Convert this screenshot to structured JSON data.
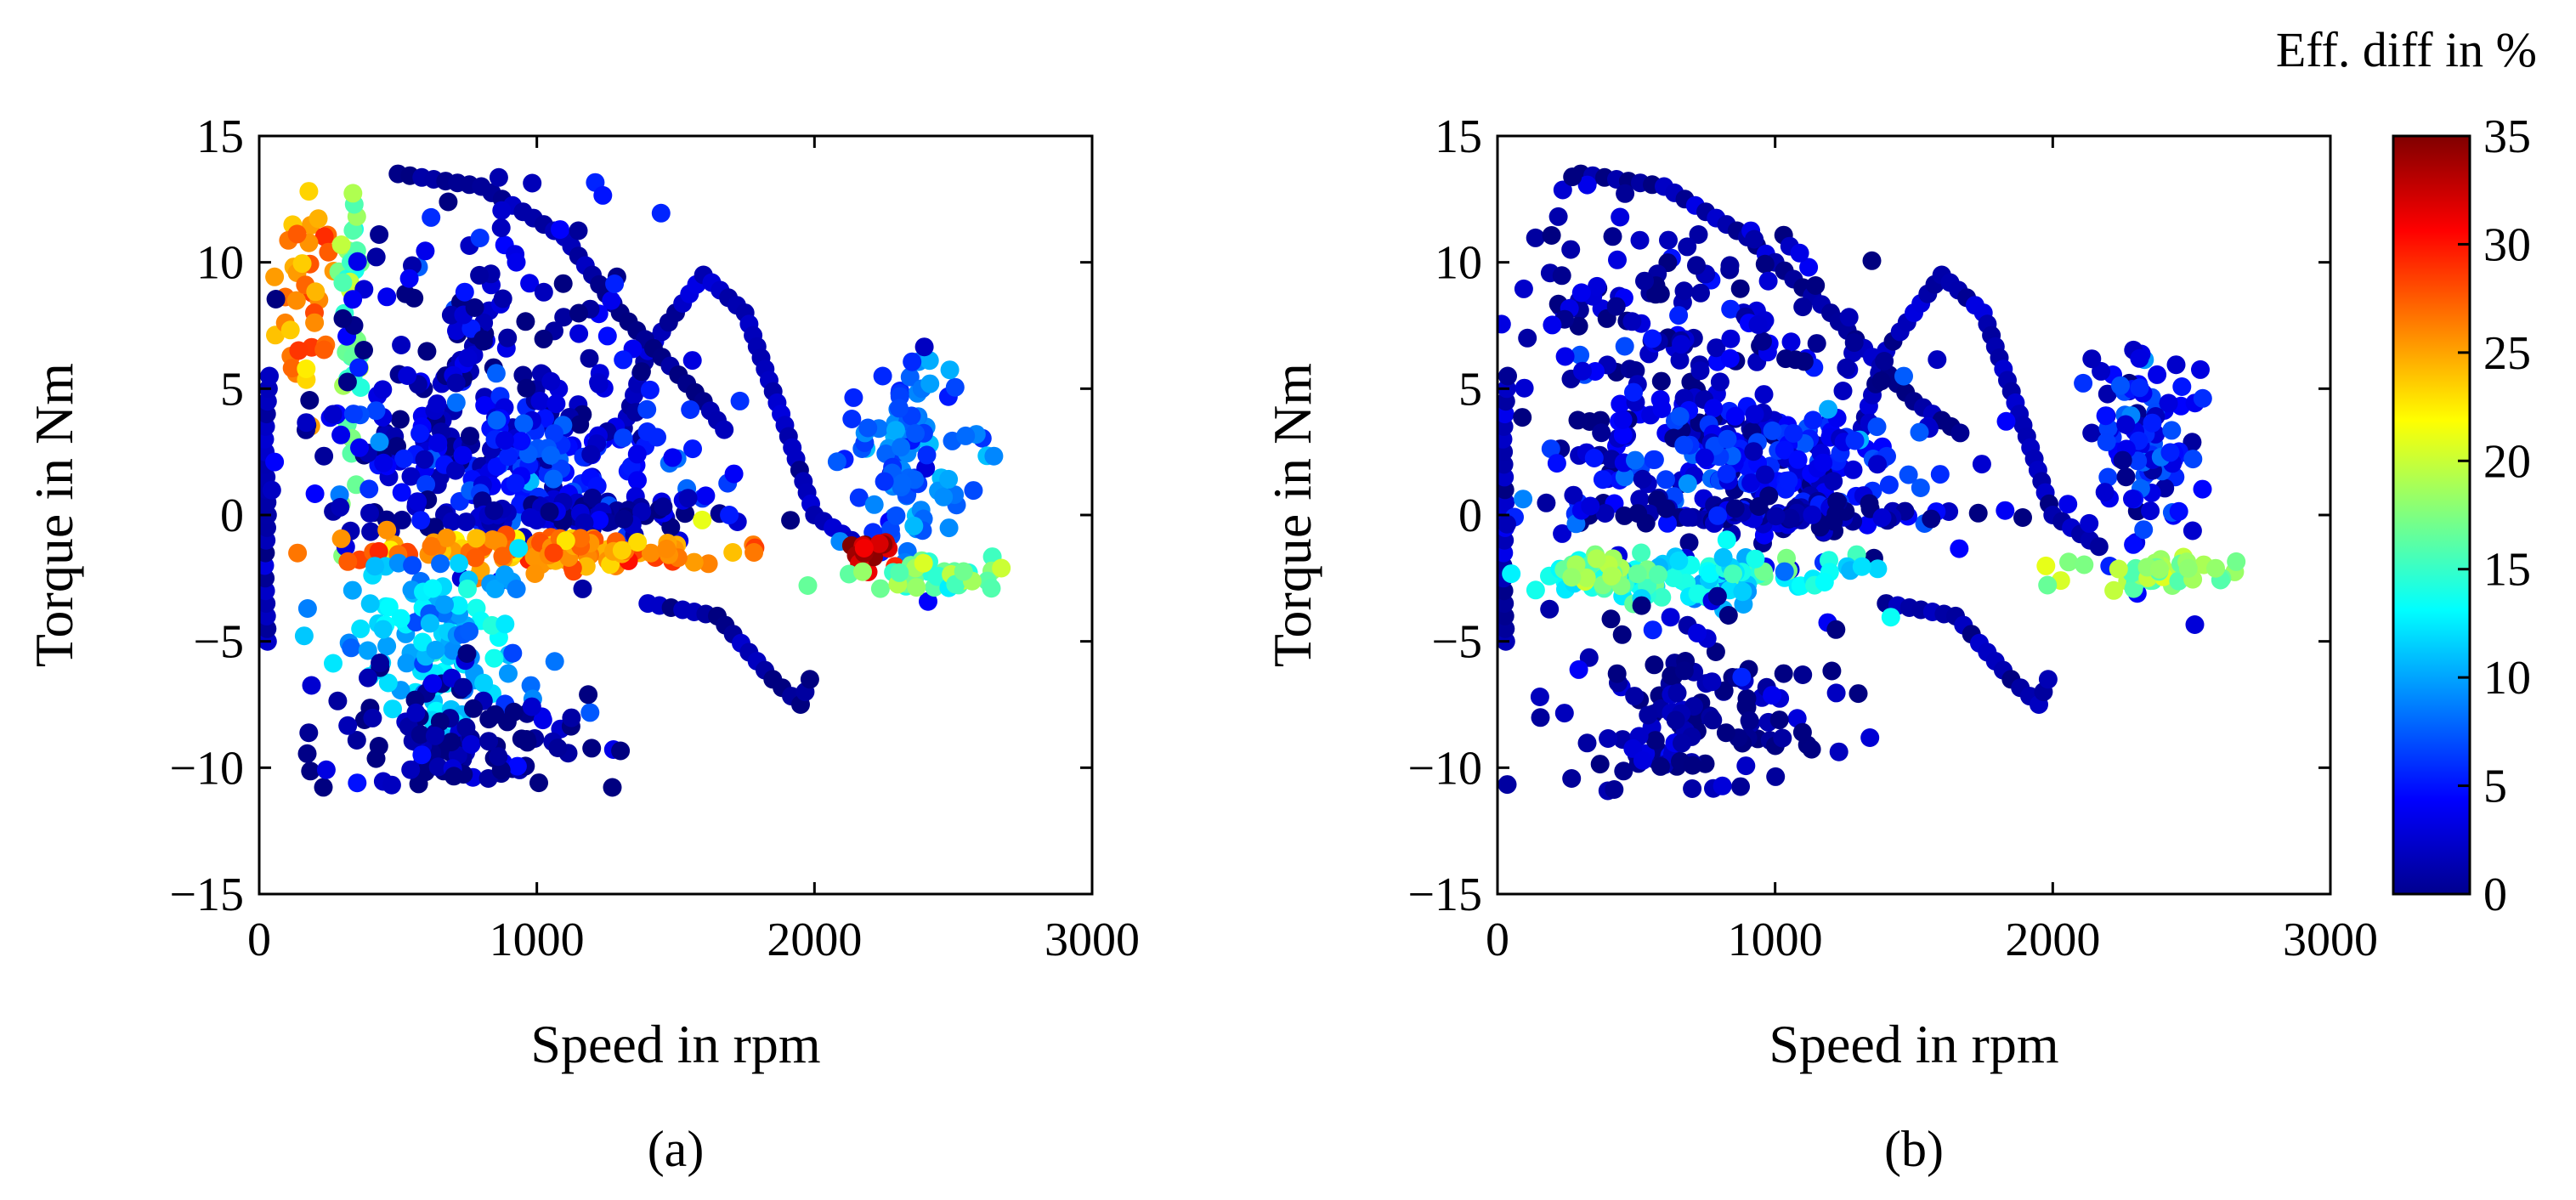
{
  "chart_data": [
    {
      "type": "scatter",
      "panel_label": "(a)",
      "xlabel": "Speed in rpm",
      "ylabel": "Torque in Nm",
      "xlim": [
        0,
        3000
      ],
      "ylim": [
        -15,
        15
      ],
      "xticks": [
        0,
        1000,
        2000,
        3000
      ],
      "yticks": [
        -15,
        -10,
        -5,
        0,
        5,
        10,
        15
      ],
      "xtick_labels": [
        "0",
        "1000",
        "2000",
        "3000"
      ],
      "ytick_labels": [
        "−15",
        "−10",
        "−5",
        "0",
        "5",
        "10",
        "15"
      ],
      "color_variable": "Eff. diff in %",
      "clusters": [
        {
          "label": "high-torque spin (orange)",
          "cx": 160,
          "cy": 9.0,
          "sx": 60,
          "sy": 3.0,
          "n": 40,
          "c": 26
        },
        {
          "label": "yellow vertical band",
          "cx": 330,
          "cy": 7.0,
          "sx": 25,
          "sy": 4.0,
          "n": 40,
          "c": 17
        },
        {
          "label": "main blue operating area",
          "cx": 800,
          "cy": 5.0,
          "sx": 300,
          "sy": 3.5,
          "n": 220,
          "c": 2
        },
        {
          "label": "blue mid band",
          "cx": 1000,
          "cy": 2.0,
          "sx": 350,
          "sy": 1.2,
          "n": 150,
          "c": 5
        },
        {
          "label": "zero-torque line",
          "cx": 1000,
          "cy": 0.0,
          "sx": 380,
          "sy": 0.3,
          "n": 90,
          "c": 2
        },
        {
          "label": "braking hot band (red/yellow)",
          "cx": 1050,
          "cy": -1.4,
          "sx": 330,
          "sy": 0.35,
          "n": 120,
          "c": 26
        },
        {
          "label": "braking light-blue area",
          "cx": 650,
          "cy": -4.5,
          "sx": 200,
          "sy": 1.6,
          "n": 110,
          "c": 11
        },
        {
          "label": "low-torque dark region",
          "cx": 700,
          "cy": -9.0,
          "sx": 250,
          "sy": 1.4,
          "n": 120,
          "c": 1
        },
        {
          "label": "high-speed loop",
          "cx": 2330,
          "cy": 2.5,
          "sx": 110,
          "sy": 2.0,
          "n": 100,
          "c": 8
        },
        {
          "label": "high-speed braking (red)",
          "cx": 2200,
          "cy": -1.5,
          "sx": 50,
          "sy": 0.5,
          "n": 15,
          "c": 32
        },
        {
          "label": "high-speed braking (yellow)",
          "cx": 2400,
          "cy": -2.4,
          "sx": 160,
          "sy": 0.3,
          "n": 40,
          "c": 17
        }
      ],
      "curves": [
        {
          "label": "main speed loop",
          "points": [
            [
              1300,
              3
            ],
            [
              1400,
              6.5
            ],
            [
              1600,
              9.5
            ],
            [
              1750,
              8
            ],
            [
              1880,
              4
            ],
            [
              2000,
              0
            ],
            [
              2200,
              -1.5
            ]
          ],
          "c": 2
        },
        {
          "label": "upper arc",
          "points": [
            [
              500,
              13.5
            ],
            [
              800,
              13
            ],
            [
              1100,
              11
            ],
            [
              1300,
              8
            ],
            [
              1600,
              4.5
            ],
            [
              1700,
              3
            ]
          ],
          "c": 1
        },
        {
          "label": "lower arc",
          "points": [
            [
              1400,
              -3.5
            ],
            [
              1650,
              -4
            ],
            [
              1850,
              -6.5
            ],
            [
              1950,
              -7.5
            ],
            [
              2000,
              -6
            ]
          ],
          "c": 1
        },
        {
          "label": "left edge",
          "points": [
            [
              30,
              -5
            ],
            [
              20,
              -2
            ],
            [
              30,
              0
            ],
            [
              20,
              3
            ],
            [
              40,
              6
            ]
          ],
          "c": 2
        }
      ]
    },
    {
      "type": "scatter",
      "panel_label": "(b)",
      "xlabel": "Speed in rpm",
      "ylabel": "Torque in Nm",
      "xlim": [
        0,
        3000
      ],
      "ylim": [
        -15,
        15
      ],
      "xticks": [
        0,
        1000,
        2000,
        3000
      ],
      "yticks": [
        -15,
        -10,
        -5,
        0,
        5,
        10,
        15
      ],
      "xtick_labels": [
        "0",
        "1000",
        "2000",
        "3000"
      ],
      "ytick_labels": [
        "−15",
        "−10",
        "−5",
        "0",
        "5",
        "10",
        "15"
      ],
      "color_variable": "Eff. diff in %",
      "clusters": [
        {
          "label": "high-torque area",
          "cx": 300,
          "cy": 9.0,
          "sx": 120,
          "sy": 3.0,
          "n": 40,
          "c": 2
        },
        {
          "label": "main blue operating area",
          "cx": 800,
          "cy": 5.0,
          "sx": 300,
          "sy": 3.5,
          "n": 220,
          "c": 2
        },
        {
          "label": "mid band",
          "cx": 1000,
          "cy": 2.0,
          "sx": 350,
          "sy": 1.2,
          "n": 150,
          "c": 5
        },
        {
          "label": "zero-torque line",
          "cx": 1000,
          "cy": 0.0,
          "sx": 380,
          "sy": 0.3,
          "n": 90,
          "c": 1
        },
        {
          "label": "braking cyan band",
          "cx": 700,
          "cy": -2.5,
          "sx": 300,
          "sy": 0.5,
          "n": 110,
          "c": 13
        },
        {
          "label": "braking green spot",
          "cx": 400,
          "cy": -2.2,
          "sx": 60,
          "sy": 0.3,
          "n": 20,
          "c": 18
        },
        {
          "label": "low-torque dark region",
          "cx": 700,
          "cy": -8.0,
          "sx": 250,
          "sy": 1.8,
          "n": 140,
          "c": 1
        },
        {
          "label": "high-speed loop",
          "cx": 2330,
          "cy": 2.5,
          "sx": 110,
          "sy": 2.0,
          "n": 100,
          "c": 4
        },
        {
          "label": "high-speed braking (yellow)",
          "cx": 2400,
          "cy": -2.3,
          "sx": 160,
          "sy": 0.3,
          "n": 45,
          "c": 18
        }
      ],
      "curves": [
        {
          "label": "main speed loop",
          "points": [
            [
              1300,
              3
            ],
            [
              1400,
              6.5
            ],
            [
              1600,
              9.5
            ],
            [
              1750,
              8
            ],
            [
              1880,
              4
            ],
            [
              2000,
              0
            ],
            [
              2200,
              -1.5
            ]
          ],
          "c": 2
        },
        {
          "label": "upper arc",
          "points": [
            [
              300,
              13.5
            ],
            [
              600,
              13
            ],
            [
              900,
              11
            ],
            [
              1200,
              8
            ],
            [
              1500,
              4.5
            ],
            [
              1700,
              3
            ]
          ],
          "c": 1
        },
        {
          "label": "lower arc",
          "points": [
            [
              1400,
              -3.5
            ],
            [
              1650,
              -4
            ],
            [
              1850,
              -6.5
            ],
            [
              1950,
              -7.5
            ],
            [
              2000,
              -6
            ]
          ],
          "c": 1
        },
        {
          "label": "left edge",
          "points": [
            [
              30,
              -5
            ],
            [
              20,
              -2
            ],
            [
              30,
              0
            ],
            [
              20,
              3
            ],
            [
              40,
              6
            ]
          ],
          "c": 2
        }
      ]
    }
  ],
  "colorbar": {
    "title": "Eff. diff in %",
    "colormap": "jet",
    "range": [
      0,
      35
    ],
    "ticks": [
      "0",
      "5",
      "10",
      "15",
      "20",
      "25",
      "30",
      "35"
    ],
    "colormap_stops": [
      "#00008f",
      "#0000ff",
      "#00ffff",
      "#ffff00",
      "#ff0000",
      "#800000"
    ]
  }
}
